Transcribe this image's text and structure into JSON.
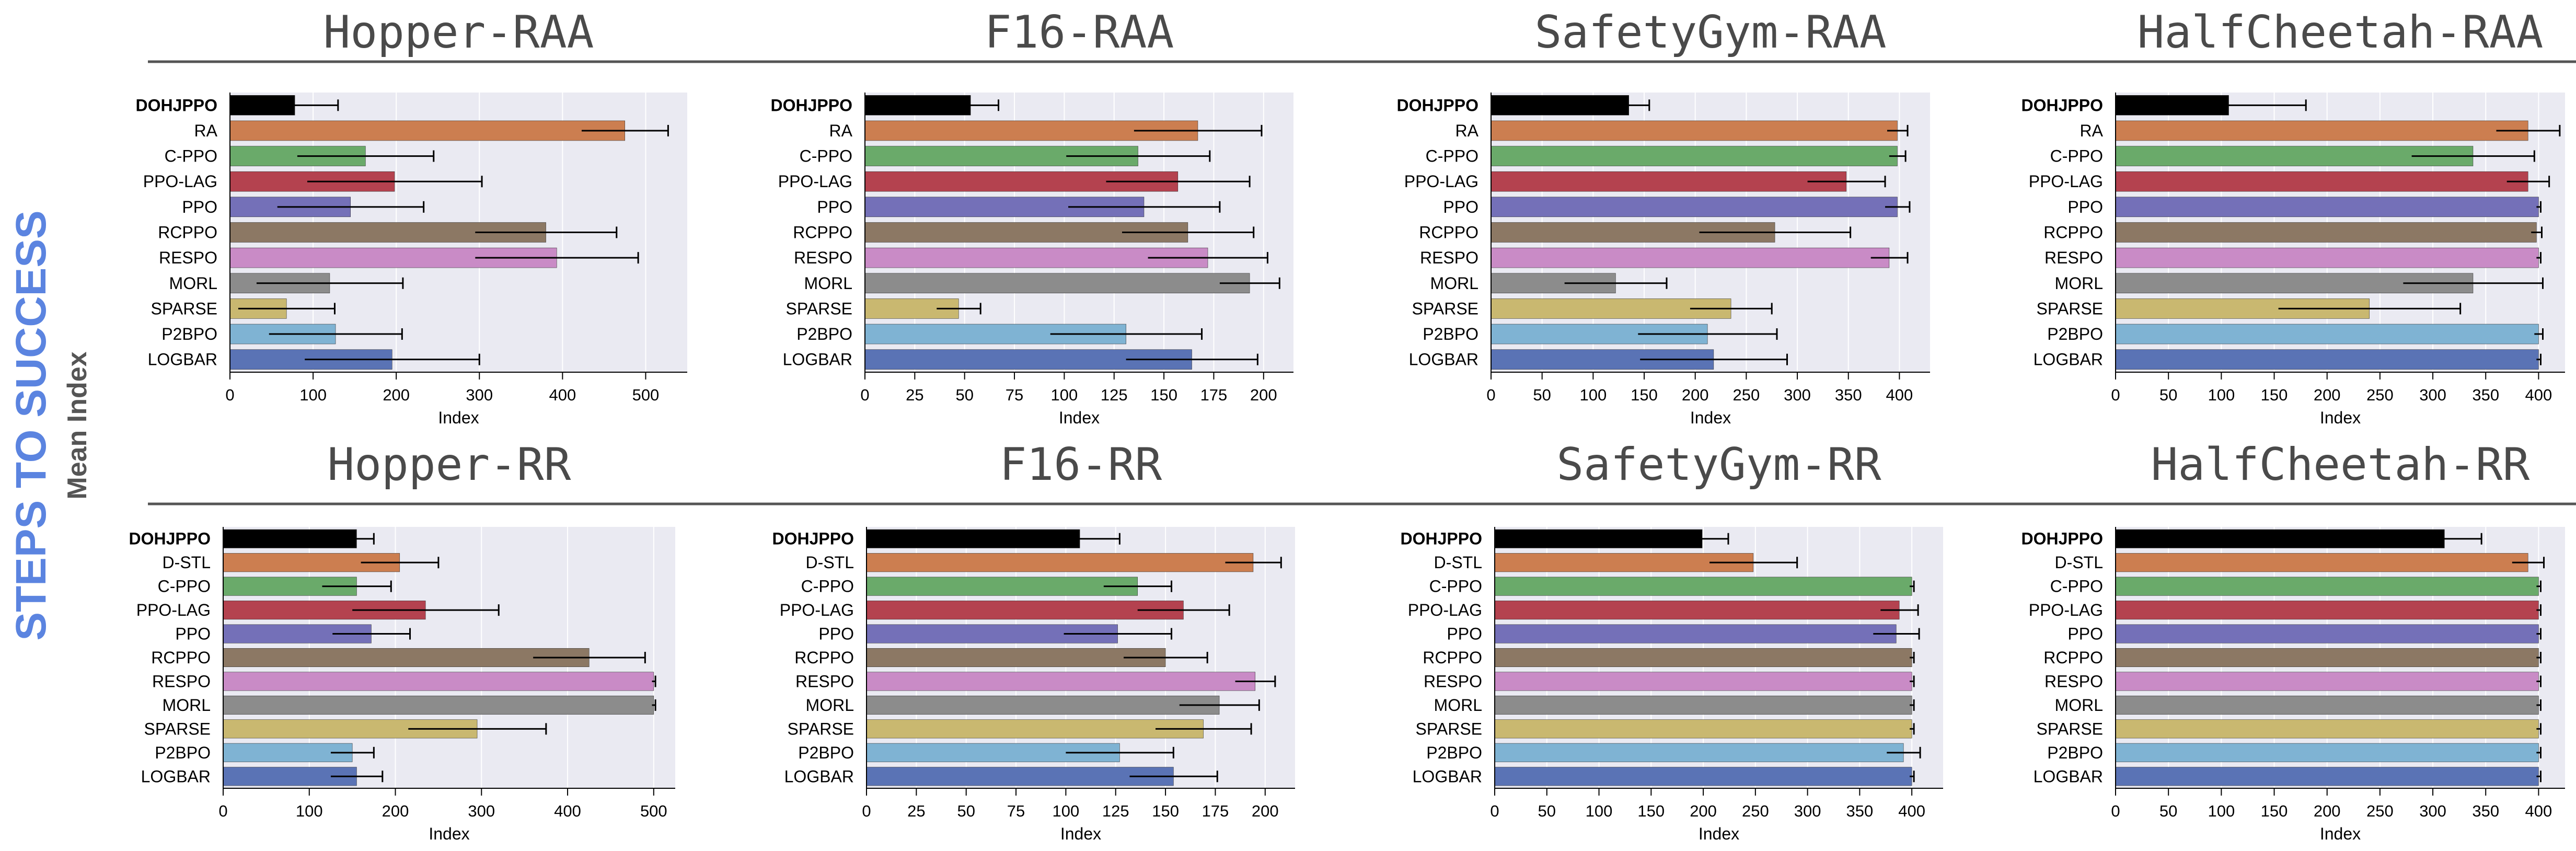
{
  "figure": {
    "side_title": "STEPS TO SUCCESS",
    "side_label": "Mean Index"
  },
  "chart_data": [
    {
      "type": "bar",
      "orientation": "horizontal",
      "title": "Hopper-RAA",
      "xlabel": "Index",
      "categories": [
        "DOHJPPO",
        "RA",
        "C-PPO",
        "PPO-LAG",
        "PPO",
        "RCPPO",
        "RESPO",
        "MORL",
        "SPARSE",
        "P2BPO",
        "LOGBAR"
      ],
      "values": [
        78,
        475,
        163,
        198,
        145,
        380,
        393,
        120,
        68,
        127,
        195
      ],
      "errors": [
        52,
        52,
        82,
        105,
        88,
        85,
        98,
        88,
        58,
        80,
        105
      ],
      "xlim": [
        0,
        550
      ],
      "xticks": [
        0,
        100,
        200,
        300,
        400,
        500
      ]
    },
    {
      "type": "bar",
      "orientation": "horizontal",
      "title": "F16-RAA",
      "xlabel": "Index",
      "categories": [
        "DOHJPPO",
        "RA",
        "C-PPO",
        "PPO-LAG",
        "PPO",
        "RCPPO",
        "RESPO",
        "MORL",
        "SPARSE",
        "P2BPO",
        "LOGBAR"
      ],
      "values": [
        53,
        167,
        137,
        157,
        140,
        162,
        172,
        193,
        47,
        131,
        164
      ],
      "errors": [
        14,
        32,
        36,
        36,
        38,
        33,
        30,
        15,
        11,
        38,
        33
      ],
      "xlim": [
        0,
        215
      ],
      "xticks": [
        0,
        25,
        50,
        75,
        100,
        125,
        150,
        175,
        200
      ]
    },
    {
      "type": "bar",
      "orientation": "horizontal",
      "title": "SafetyGym-RAA",
      "xlabel": "Index",
      "categories": [
        "DOHJPPO",
        "RA",
        "C-PPO",
        "PPO-LAG",
        "PPO",
        "RCPPO",
        "RESPO",
        "MORL",
        "SPARSE",
        "P2BPO",
        "LOGBAR"
      ],
      "values": [
        135,
        398,
        398,
        348,
        398,
        278,
        390,
        122,
        235,
        212,
        218
      ],
      "errors": [
        20,
        10,
        8,
        38,
        12,
        74,
        18,
        50,
        40,
        68,
        72
      ],
      "xlim": [
        0,
        430
      ],
      "xticks": [
        0,
        50,
        100,
        150,
        200,
        250,
        300,
        350,
        400
      ]
    },
    {
      "type": "bar",
      "orientation": "horizontal",
      "title": "HalfCheetah-RAA",
      "xlabel": "Index",
      "categories": [
        "DOHJPPO",
        "RA",
        "C-PPO",
        "PPO-LAG",
        "PPO",
        "RCPPO",
        "RESPO",
        "MORL",
        "SPARSE",
        "P2BPO",
        "LOGBAR"
      ],
      "values": [
        107,
        390,
        338,
        390,
        400,
        398,
        400,
        338,
        240,
        400,
        400
      ],
      "errors": [
        73,
        30,
        58,
        20,
        2,
        5,
        2,
        66,
        86,
        4,
        2
      ],
      "xlim": [
        0,
        425
      ],
      "xticks": [
        0,
        50,
        100,
        150,
        200,
        250,
        300,
        350,
        400
      ]
    },
    {
      "type": "bar",
      "orientation": "horizontal",
      "title": "Hopper-RR",
      "xlabel": "Index",
      "categories": [
        "DOHJPPO",
        "D-STL",
        "C-PPO",
        "PPO-LAG",
        "PPO",
        "RCPPO",
        "RESPO",
        "MORL",
        "SPARSE",
        "P2BPO",
        "LOGBAR"
      ],
      "values": [
        155,
        205,
        155,
        235,
        172,
        425,
        500,
        500,
        295,
        150,
        155
      ],
      "errors": [
        20,
        45,
        40,
        85,
        45,
        65,
        2,
        2,
        80,
        25,
        30
      ],
      "xlim": [
        0,
        525
      ],
      "xticks": [
        0,
        100,
        200,
        300,
        400,
        500
      ]
    },
    {
      "type": "bar",
      "orientation": "horizontal",
      "title": "F16-RR",
      "xlabel": "Index",
      "categories": [
        "DOHJPPO",
        "D-STL",
        "C-PPO",
        "PPO-LAG",
        "PPO",
        "RCPPO",
        "RESPO",
        "MORL",
        "SPARSE",
        "P2BPO",
        "LOGBAR"
      ],
      "values": [
        107,
        194,
        136,
        159,
        126,
        150,
        195,
        177,
        169,
        127,
        154
      ],
      "errors": [
        20,
        14,
        17,
        23,
        27,
        21,
        10,
        20,
        24,
        27,
        22
      ],
      "xlim": [
        0,
        215
      ],
      "xticks": [
        0,
        25,
        50,
        75,
        100,
        125,
        150,
        175,
        200
      ]
    },
    {
      "type": "bar",
      "orientation": "horizontal",
      "title": "SafetyGym-RR",
      "xlabel": "Index",
      "categories": [
        "DOHJPPO",
        "D-STL",
        "C-PPO",
        "PPO-LAG",
        "PPO",
        "RCPPO",
        "RESPO",
        "MORL",
        "SPARSE",
        "P2BPO",
        "LOGBAR"
      ],
      "values": [
        199,
        248,
        400,
        388,
        385,
        400,
        400,
        400,
        400,
        392,
        400
      ],
      "errors": [
        25,
        42,
        2,
        18,
        22,
        2,
        2,
        2,
        2,
        16,
        2
      ],
      "xlim": [
        0,
        430
      ],
      "xticks": [
        0,
        50,
        100,
        150,
        200,
        250,
        300,
        350,
        400
      ]
    },
    {
      "type": "bar",
      "orientation": "horizontal",
      "title": "HalfCheetah-RR",
      "xlabel": "Index",
      "categories": [
        "DOHJPPO",
        "D-STL",
        "C-PPO",
        "PPO-LAG",
        "PPO",
        "RCPPO",
        "RESPO",
        "MORL",
        "SPARSE",
        "P2BPO",
        "LOGBAR"
      ],
      "values": [
        311,
        390,
        400,
        400,
        400,
        400,
        400,
        400,
        400,
        400,
        400
      ],
      "errors": [
        35,
        15,
        2,
        2,
        2,
        2,
        2,
        2,
        2,
        2,
        2
      ],
      "xlim": [
        0,
        425
      ],
      "xticks": [
        0,
        50,
        100,
        150,
        200,
        250,
        300,
        350,
        400
      ]
    }
  ],
  "colors": {
    "bars": [
      "#000000",
      "#cc7e50",
      "#6aaa6a",
      "#b4424f",
      "#7470b8",
      "#8c7864",
      "#c98bc6",
      "#8c8c8c",
      "#c9b870",
      "#7fb3d3",
      "#5a73b5"
    ],
    "plot_bg": "#eaeaf2",
    "title": "#4a4a4a",
    "side_title": "#5b84e0"
  }
}
